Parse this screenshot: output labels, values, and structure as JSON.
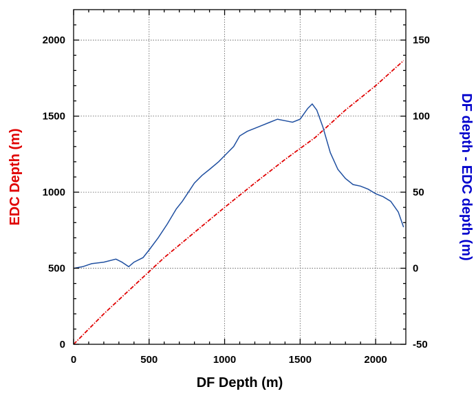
{
  "chart_data": {
    "type": "line",
    "xlabel": "DF Depth (m)",
    "ylabel": "EDC Depth (m)",
    "ylabel_right": "DF depth - EDC depth (m)",
    "xlim": [
      0,
      2200
    ],
    "ylim": [
      0,
      2200
    ],
    "ylim_right": [
      -50,
      170
    ],
    "grid": true,
    "x_ticks": [
      0,
      500,
      1000,
      1500,
      2000
    ],
    "y_ticks": [
      0,
      500,
      1000,
      1500,
      2000
    ],
    "y_right_ticks": [
      -50,
      0,
      50,
      100,
      150
    ],
    "series": [
      {
        "axis": "left",
        "color": "#e00000",
        "style": "dash-dot",
        "x": [
          0,
          200,
          400,
          600,
          800,
          1000,
          1200,
          1400,
          1600,
          1800,
          2000,
          2185
        ],
        "y": [
          0,
          200,
          385,
          570,
          735,
          900,
          1060,
          1215,
          1360,
          1540,
          1700,
          1865
        ]
      },
      {
        "axis": "right",
        "color": "#1f4fa0",
        "style": "solid",
        "x": [
          5,
          60,
          120,
          200,
          280,
          320,
          365,
          400,
          460,
          500,
          560,
          620,
          680,
          720,
          760,
          800,
          850,
          900,
          960,
          1000,
          1060,
          1100,
          1150,
          1200,
          1250,
          1300,
          1350,
          1400,
          1450,
          1500,
          1550,
          1580,
          1610,
          1650,
          1700,
          1750,
          1800,
          1850,
          1900,
          1950,
          2000,
          2050,
          2100,
          2150,
          2185
        ],
        "y": [
          0,
          1,
          3,
          4,
          6,
          4,
          1,
          4,
          7,
          12,
          20,
          29,
          39,
          44,
          50,
          56,
          61,
          65,
          70,
          74,
          80,
          87,
          90,
          92,
          94,
          96,
          98,
          97,
          96,
          98,
          105,
          108,
          104,
          93,
          76,
          65,
          59,
          55,
          54,
          52,
          49,
          47,
          44,
          37,
          27
        ]
      }
    ]
  }
}
